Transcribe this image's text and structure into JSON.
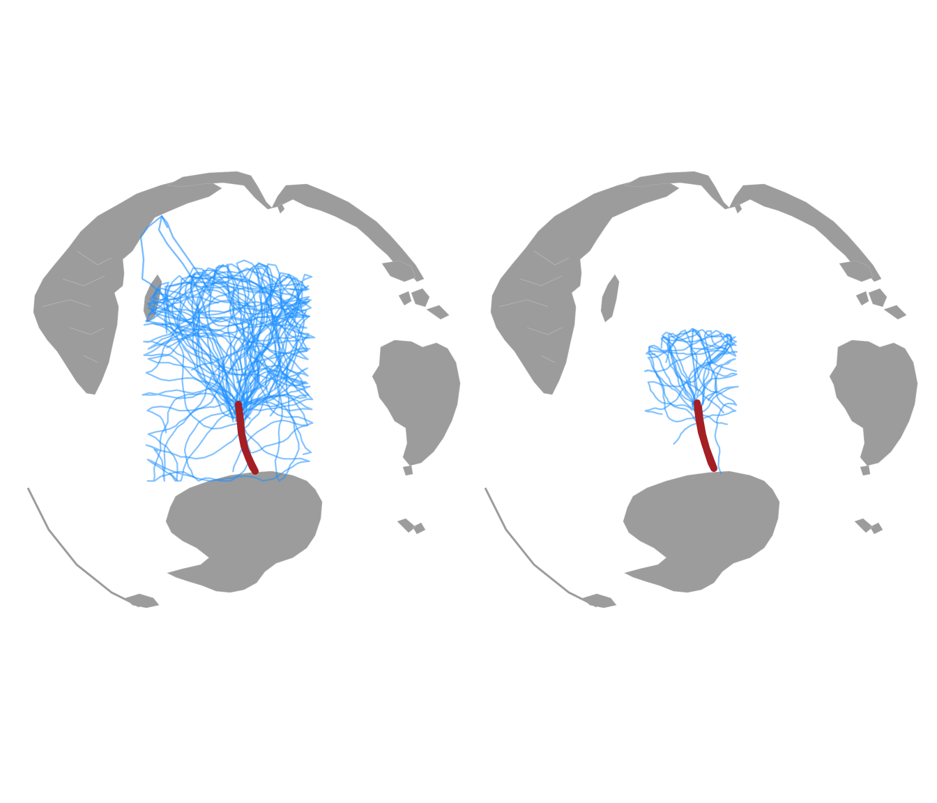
{
  "colors": {
    "background": "#ffffff",
    "ocean": "#ffffff",
    "land": "#9c9c9c",
    "track": "#1e90ff",
    "centerline": "#a31f24"
  },
  "panels": [
    {
      "id": "left",
      "track_count": 40,
      "track_seed": 7,
      "spread": 1.0,
      "projection": "orthographic"
    },
    {
      "id": "right",
      "track_count": 14,
      "track_seed": 31,
      "spread": 0.55,
      "projection": "orthographic"
    }
  ]
}
